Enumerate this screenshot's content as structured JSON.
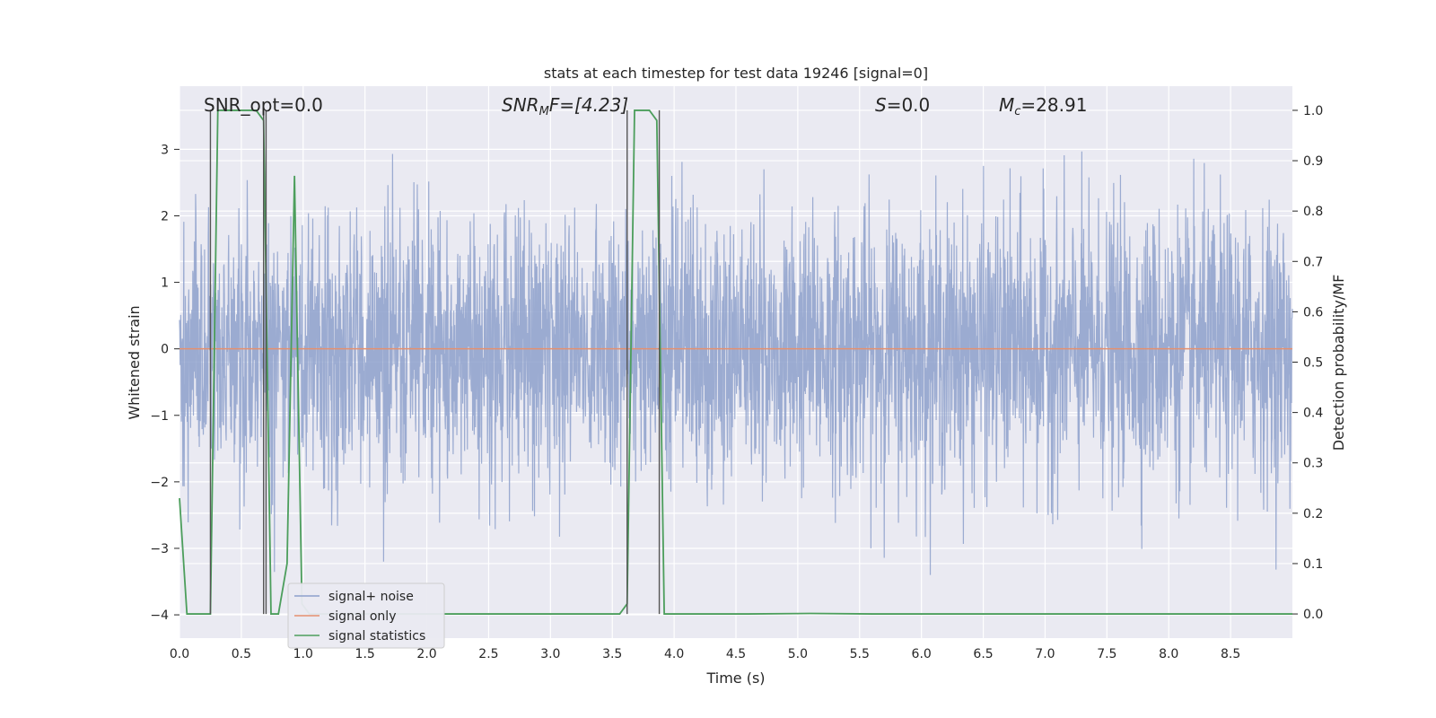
{
  "chart_data": {
    "type": "line",
    "title": "stats at each timestep for test data 19246 [signal=0]",
    "xlabel": "Time (s)",
    "ylabel_left": "Whitened strain",
    "ylabel_right": "Detection probability/MF",
    "xlim": [
      0.0,
      9.0
    ],
    "ylim_left": [
      -4.35,
      3.95
    ],
    "ylim_right": [
      -0.048,
      1.048
    ],
    "xticks": [
      "0.0",
      "0.5",
      "1.0",
      "1.5",
      "2.0",
      "2.5",
      "3.0",
      "3.5",
      "4.0",
      "4.5",
      "5.0",
      "5.5",
      "6.0",
      "6.5",
      "7.0",
      "7.5",
      "8.0",
      "8.5"
    ],
    "yticks_left": [
      "−4",
      "−3",
      "−2",
      "−1",
      "0",
      "1",
      "2",
      "3"
    ],
    "yticks_right": [
      "0.0",
      "0.1",
      "0.2",
      "0.3",
      "0.4",
      "0.5",
      "0.6",
      "0.7",
      "0.8",
      "0.9",
      "1.0"
    ],
    "grid": true,
    "legend_placement": "lower-left",
    "annotations": {
      "snr_opt": "SNR_opt=0.0",
      "snr_mf_base": "SNR",
      "snr_mf_sub": "M",
      "snr_mf_tail": "F=[4.23]",
      "s_base": "S",
      "s_tail": "=0.0",
      "mc_base": "M",
      "mc_sub": "c",
      "mc_tail": "=28.91"
    },
    "series": [
      {
        "name": "signal+ noise",
        "color": "#8da0cb",
        "description_stats": {
          "x_start": 0.0,
          "x_end": 9.0,
          "envelope_core": [
            -1.0,
            1.0
          ],
          "peaks_max": 3.4,
          "peaks_min": -3.4
        }
      },
      {
        "name": "signal only",
        "color": "#e5906f",
        "x": [
          0.0,
          9.0
        ],
        "y": [
          0.0,
          0.0
        ]
      },
      {
        "name": "signal statistics",
        "color": "#4c9e5c",
        "axis": "right",
        "x": [
          0.0,
          0.06,
          0.25,
          0.31,
          0.62,
          0.68,
          0.74,
          0.8,
          0.87,
          0.93,
          0.99,
          1.05,
          3.56,
          3.62,
          3.68,
          3.8,
          3.86,
          3.92,
          3.98,
          4.6,
          5.1,
          5.6,
          9.0
        ],
        "y": [
          0.23,
          0.0,
          0.0,
          1.0,
          1.0,
          0.98,
          0.0,
          0.0,
          0.1,
          0.87,
          0.02,
          0.0,
          0.0,
          0.02,
          1.0,
          1.0,
          0.98,
          0.0,
          0.0,
          0.0,
          0.001,
          0.0,
          0.0
        ]
      }
    ],
    "vertical_markers_x": [
      0.25,
      0.68,
      0.7,
      3.62,
      3.88
    ]
  }
}
